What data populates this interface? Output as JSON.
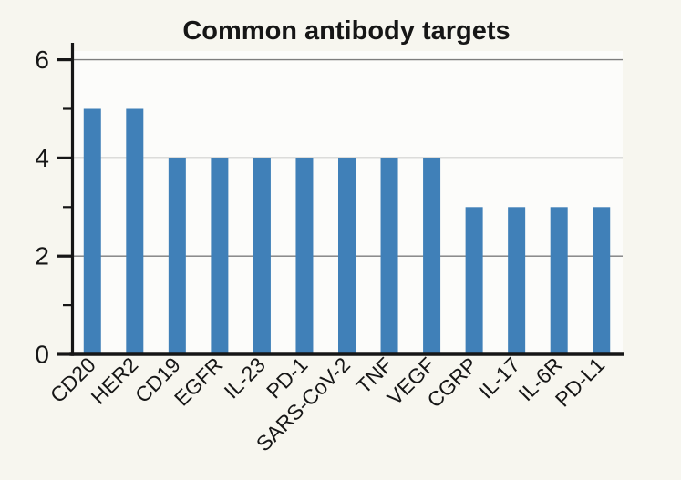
{
  "figure": {
    "title": "Common antibody targets"
  },
  "chart_data": {
    "type": "bar",
    "title": "Common antibody targets",
    "categories": [
      "CD20",
      "HER2",
      "CD19",
      "EGFR",
      "IL-23",
      "PD-1",
      "SARS-CoV-2",
      "TNF",
      "VEGF",
      "CGRP",
      "IL-17",
      "IL-6R",
      "PD-L1"
    ],
    "values": [
      5,
      5,
      4,
      4,
      4,
      4,
      4,
      4,
      4,
      3,
      3,
      3,
      3
    ],
    "xlabel": "",
    "ylabel": "",
    "ylim": [
      0,
      6.2
    ],
    "yticks": [
      0,
      2,
      4,
      6
    ],
    "ytick_labels": [
      "0",
      "2",
      "4",
      "6"
    ],
    "minor_yticks": [
      1,
      3,
      5
    ],
    "gridline_values": [
      2,
      4,
      6
    ],
    "grid": "horizontal",
    "legend": "none",
    "x_tick_label_rotation_deg": 45,
    "colors": {
      "bar": "#4080b8",
      "figure_background": "#f7f6ef",
      "plot_background": "#fcfcfa",
      "gridline": "#7d7d7d",
      "axis": "#161616",
      "text": "#161616"
    }
  }
}
